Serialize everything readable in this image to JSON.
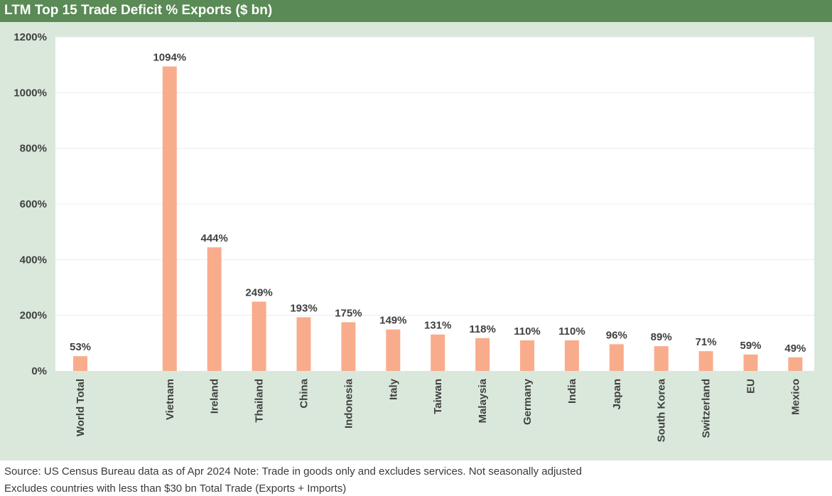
{
  "header": {
    "title": "LTM Top 15 Trade Deficit % Exports ($ bn)"
  },
  "footer": {
    "source_note": "Source: US Census Bureau data as of Apr 2024 Note: Trade in goods only and excludes services. Not seasonally adjusted",
    "exclusion_note": "Excludes countries with less than $30 bn Total Trade (Exports + Imports)"
  },
  "colors": {
    "title_bar": "#5a8a55",
    "panel_background": "#d9e8da",
    "plot_background": "#ffffff",
    "bar": "#f9ac8c",
    "gridline": "#ececec",
    "text": "#404040"
  },
  "chart_data": {
    "type": "bar",
    "title": "LTM Top 15 Trade Deficit % Exports ($ bn)",
    "xlabel": "",
    "ylabel": "",
    "ylim": [
      0,
      1200
    ],
    "yticks": [
      0,
      200,
      400,
      600,
      800,
      1000,
      1200
    ],
    "ytick_labels": [
      "0%",
      "200%",
      "400%",
      "600%",
      "800%",
      "1000%",
      "1200%"
    ],
    "grid": true,
    "legend": "none",
    "categories": [
      "World Total",
      "",
      "Vietnam",
      "Ireland",
      "Thailand",
      "China",
      "Indonesia",
      "Italy",
      "Taiwan",
      "Malaysia",
      "Germany",
      "India",
      "Japan",
      "South Korea",
      "Switzerland",
      "EU",
      "Mexico"
    ],
    "values": [
      53,
      null,
      1094,
      444,
      249,
      193,
      175,
      149,
      131,
      118,
      110,
      110,
      96,
      89,
      71,
      59,
      49
    ],
    "data_labels": [
      "53%",
      "",
      "1094%",
      "444%",
      "249%",
      "193%",
      "175%",
      "149%",
      "131%",
      "118%",
      "110%",
      "110%",
      "96%",
      "89%",
      "71%",
      "59%",
      "49%"
    ]
  }
}
